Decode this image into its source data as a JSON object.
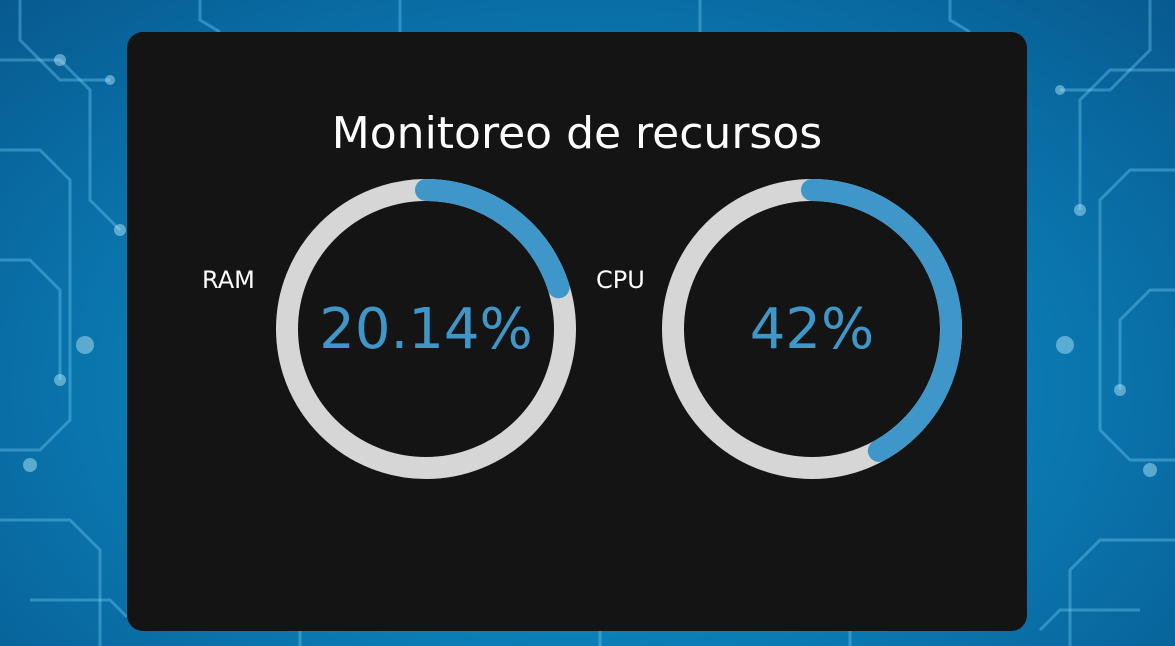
{
  "page": {
    "title": "Monitoreo de recursos"
  },
  "gauges": [
    {
      "label": "RAM",
      "value_text": "20.14%",
      "percent": 20.14
    },
    {
      "label": "CPU",
      "value_text": "42%",
      "percent": 42
    }
  ],
  "colors": {
    "panel_bg": "#141414",
    "track": "#d6d6d6",
    "progress": "#3f97c9",
    "text": "#ffffff",
    "background": "#0b7fb8"
  }
}
